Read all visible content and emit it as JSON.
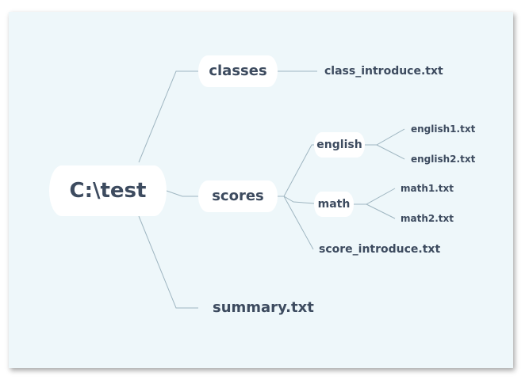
{
  "mindmap": {
    "root": "C:\\test",
    "classes": {
      "label": "classes",
      "children": [
        "class_introduce.txt"
      ]
    },
    "scores": {
      "label": "scores",
      "english": {
        "label": "english",
        "children": [
          "english1.txt",
          "english2.txt"
        ]
      },
      "math": {
        "label": "math",
        "children": [
          "math1.txt",
          "math2.txt"
        ]
      },
      "file": "score_introduce.txt"
    },
    "summary": "summary.txt"
  },
  "colors": {
    "background": "#eef7fa",
    "node_fill": "#ffffff",
    "text": "#3d4b5f",
    "link": "#9fb6c1"
  }
}
